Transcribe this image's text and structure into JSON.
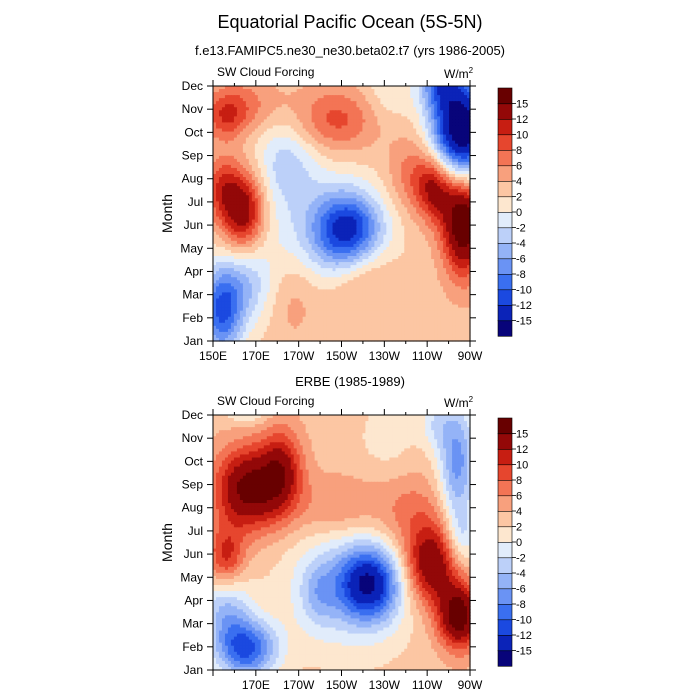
{
  "title": "Equatorial Pacific Ocean (5S-5N)",
  "subtitle": "f.e13.FAMIPC5.ne30_ne30.beta02.t7 (yrs 1986-2005)",
  "chart_data": [
    {
      "type": "heatmap",
      "subplot_title": "",
      "variable": "SW Cloud Forcing",
      "units_base": "W/m",
      "units_exp": "2",
      "ylabel": "Month",
      "xlim": [
        150,
        270
      ],
      "x_ticks": [
        {
          "v": 150,
          "label": "150E"
        },
        {
          "v": 170,
          "label": "170E"
        },
        {
          "v": 190,
          "label": "170W"
        },
        {
          "v": 210,
          "label": "150W"
        },
        {
          "v": 230,
          "label": "130W"
        },
        {
          "v": 250,
          "label": "110W"
        },
        {
          "v": 270,
          "label": "90W"
        }
      ],
      "months": [
        "Jan",
        "Feb",
        "Mar",
        "Apr",
        "May",
        "Jun",
        "Jul",
        "Aug",
        "Sep",
        "Oct",
        "Nov",
        "Dec"
      ],
      "background_value": 3,
      "blobs": [
        {
          "x": 213,
          "m": 4.8,
          "sx": 11,
          "sm": 1.1,
          "a": -13
        },
        {
          "x": 200,
          "m": 4.5,
          "sx": 22,
          "sm": 2.3,
          "a": -5
        },
        {
          "x": 154,
          "m": 1.3,
          "sx": 7,
          "sm": 1.4,
          "a": -13
        },
        {
          "x": 166,
          "m": 2.4,
          "sx": 8,
          "sm": 1.2,
          "a": -5
        },
        {
          "x": 164,
          "m": 5.6,
          "sx": 7,
          "sm": 1.2,
          "a": 12
        },
        {
          "x": 154,
          "m": 6.6,
          "sx": 6,
          "sm": 1.0,
          "a": 6
        },
        {
          "x": 188,
          "m": 2.0,
          "sx": 8,
          "sm": 1.5,
          "a": 3
        },
        {
          "x": 184,
          "m": 7.8,
          "sx": 10,
          "sm": 1.3,
          "a": -5
        },
        {
          "x": 266,
          "m": 9.0,
          "sx": 10,
          "sm": 1.6,
          "a": -22
        },
        {
          "x": 256,
          "m": 11.3,
          "sx": 7,
          "sm": 0.9,
          "a": -10
        },
        {
          "x": 267,
          "m": 5.2,
          "sx": 7,
          "sm": 1.6,
          "a": 16
        },
        {
          "x": 254,
          "m": 6.6,
          "sx": 6,
          "sm": 1.0,
          "a": 9
        },
        {
          "x": 245,
          "m": 7.2,
          "sx": 9,
          "sm": 1.2,
          "a": 5
        },
        {
          "x": 207,
          "m": 9.5,
          "sx": 14,
          "sm": 1.0,
          "a": 6
        },
        {
          "x": 163,
          "m": 10.2,
          "sx": 12,
          "sm": 0.8,
          "a": 4
        },
        {
          "x": 156,
          "m": 9.6,
          "sx": 7,
          "sm": 0.7,
          "a": 5
        },
        {
          "x": 222,
          "m": 3.0,
          "sx": 10,
          "sm": 1.0,
          "a": 3
        },
        {
          "x": 232,
          "m": 11.0,
          "sx": 8,
          "sm": 1.2,
          "a": -3
        },
        {
          "x": 210,
          "m": 2.0,
          "sx": 12,
          "sm": 1.0,
          "a": 2
        }
      ]
    },
    {
      "type": "heatmap",
      "subplot_title": "ERBE (1985-1989)",
      "variable": "SW Cloud Forcing",
      "units_base": "W/m",
      "units_exp": "2",
      "ylabel": "Month",
      "xlim": [
        150,
        270
      ],
      "x_ticks": [
        {
          "v": 150,
          "label": ""
        },
        {
          "v": 170,
          "label": "170E"
        },
        {
          "v": 190,
          "label": "170W"
        },
        {
          "v": 210,
          "label": "150W"
        },
        {
          "v": 230,
          "label": "130W"
        },
        {
          "v": 250,
          "label": "110W"
        },
        {
          "v": 270,
          "label": "90W"
        }
      ],
      "months": [
        "Jan",
        "Feb",
        "Mar",
        "Apr",
        "May",
        "Jun",
        "Jul",
        "Aug",
        "Sep",
        "Oct",
        "Nov",
        "Dec"
      ],
      "background_value": 3,
      "blobs": [
        {
          "x": 223,
          "m": 3.7,
          "sx": 10,
          "sm": 1.1,
          "a": -14
        },
        {
          "x": 213,
          "m": 3.7,
          "sx": 20,
          "sm": 2.0,
          "a": -6
        },
        {
          "x": 199,
          "m": 3.3,
          "sx": 6,
          "sm": 1.0,
          "a": -4
        },
        {
          "x": 166,
          "m": 0.9,
          "sx": 10,
          "sm": 0.9,
          "a": -13
        },
        {
          "x": 156,
          "m": 2.6,
          "sx": 8,
          "sm": 1.2,
          "a": -7
        },
        {
          "x": 166,
          "m": 11.9,
          "sx": 7,
          "sm": 0.6,
          "a": -14
        },
        {
          "x": 264,
          "m": 9.0,
          "sx": 6,
          "sm": 1.8,
          "a": -10
        },
        {
          "x": 266,
          "m": 5.7,
          "sx": 5,
          "sm": 1.0,
          "a": -5
        },
        {
          "x": 265,
          "m": 2.3,
          "sx": 7,
          "sm": 1.0,
          "a": 14
        },
        {
          "x": 252,
          "m": 4.5,
          "sx": 9,
          "sm": 1.2,
          "a": 12
        },
        {
          "x": 166,
          "m": 7.8,
          "sx": 11,
          "sm": 1.3,
          "a": 13
        },
        {
          "x": 182,
          "m": 8.6,
          "sx": 7,
          "sm": 1.3,
          "a": 9
        },
        {
          "x": 156,
          "m": 4.8,
          "sx": 6,
          "sm": 0.9,
          "a": 8
        },
        {
          "x": 243,
          "m": 6.7,
          "sx": 12,
          "sm": 1.3,
          "a": 4
        },
        {
          "x": 208,
          "m": 7.0,
          "sx": 15,
          "sm": 1.0,
          "a": 4
        },
        {
          "x": 232,
          "m": 10.0,
          "sx": 10,
          "sm": 1.2,
          "a": -2
        },
        {
          "x": 254,
          "m": 10.6,
          "sx": 5,
          "sm": 0.8,
          "a": -4
        }
      ]
    }
  ],
  "colorbar": {
    "levels": [
      -15,
      -12,
      -10,
      -8,
      -6,
      -4,
      -2,
      0,
      2,
      4,
      6,
      8,
      10,
      12,
      15
    ],
    "labels": [
      "-15",
      "-12",
      "-10",
      "-8",
      "-6",
      "-4",
      "-2",
      "0",
      "2",
      "4",
      "6",
      "8",
      "10",
      "12",
      "15"
    ],
    "colors": [
      "#08047a",
      "#0b23b8",
      "#1b49e0",
      "#3a6ff0",
      "#6a93f4",
      "#94b3f7",
      "#bcd0f9",
      "#e1ecfb",
      "#fde7cf",
      "#fcc6a3",
      "#f8a07d",
      "#f37455",
      "#e6462e",
      "#c71e12",
      "#930808",
      "#680000"
    ]
  }
}
